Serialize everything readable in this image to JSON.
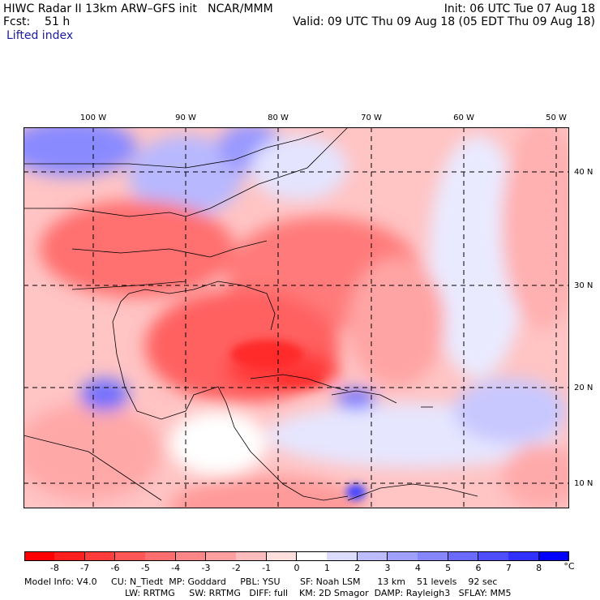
{
  "header": {
    "line1_left": "HIWC Radar II 13km ARW–GFS init   NCAR/MMM",
    "line1_right": "Init: 06 UTC Tue 07 Aug 18",
    "line2_left": "Fcst:    51 h",
    "line2_right": "Valid: 09 UTC Thu 09 Aug 18 (05 EDT Thu 09 Aug 18)",
    "field_name": "Lifted index"
  },
  "longitude_labels": [
    "100 W",
    "90 W",
    "80 W",
    "70 W",
    "60 W",
    "50 W"
  ],
  "latitude_labels": [
    "40 N",
    "30 N",
    "20 N",
    "10 N"
  ],
  "colorbar": {
    "tick_labels": [
      "-8",
      "-7",
      "-6",
      "-5",
      "-4",
      "-3",
      "-2",
      "-1",
      "0",
      "1",
      "2",
      "3",
      "4",
      "5",
      "6",
      "7",
      "8"
    ],
    "unit": "°C",
    "colors": [
      "#ff0000",
      "#ff1f1f",
      "#ff3c3c",
      "#ff5656",
      "#ff6e6e",
      "#ff8686",
      "#ffa0a0",
      "#ffbcbc",
      "#ffdede",
      "#ffffff",
      "#dcdcff",
      "#bcbcff",
      "#a0a0ff",
      "#8686ff",
      "#6a6aff",
      "#4e4eff",
      "#3030ff",
      "#0000ff"
    ]
  },
  "footer": {
    "line1": "Model Info: V4.0     CU: N_Tiedt  MP: Goddard     PBL: YSU       SF: Noah LSM      13 km    51 levels    92 sec",
    "line2": "LW: RRTMG     SW: RRTMG   DIFF: full    KM: 2D Smagor  DAMP: Rayleigh3   SFLAY: MM5"
  }
}
